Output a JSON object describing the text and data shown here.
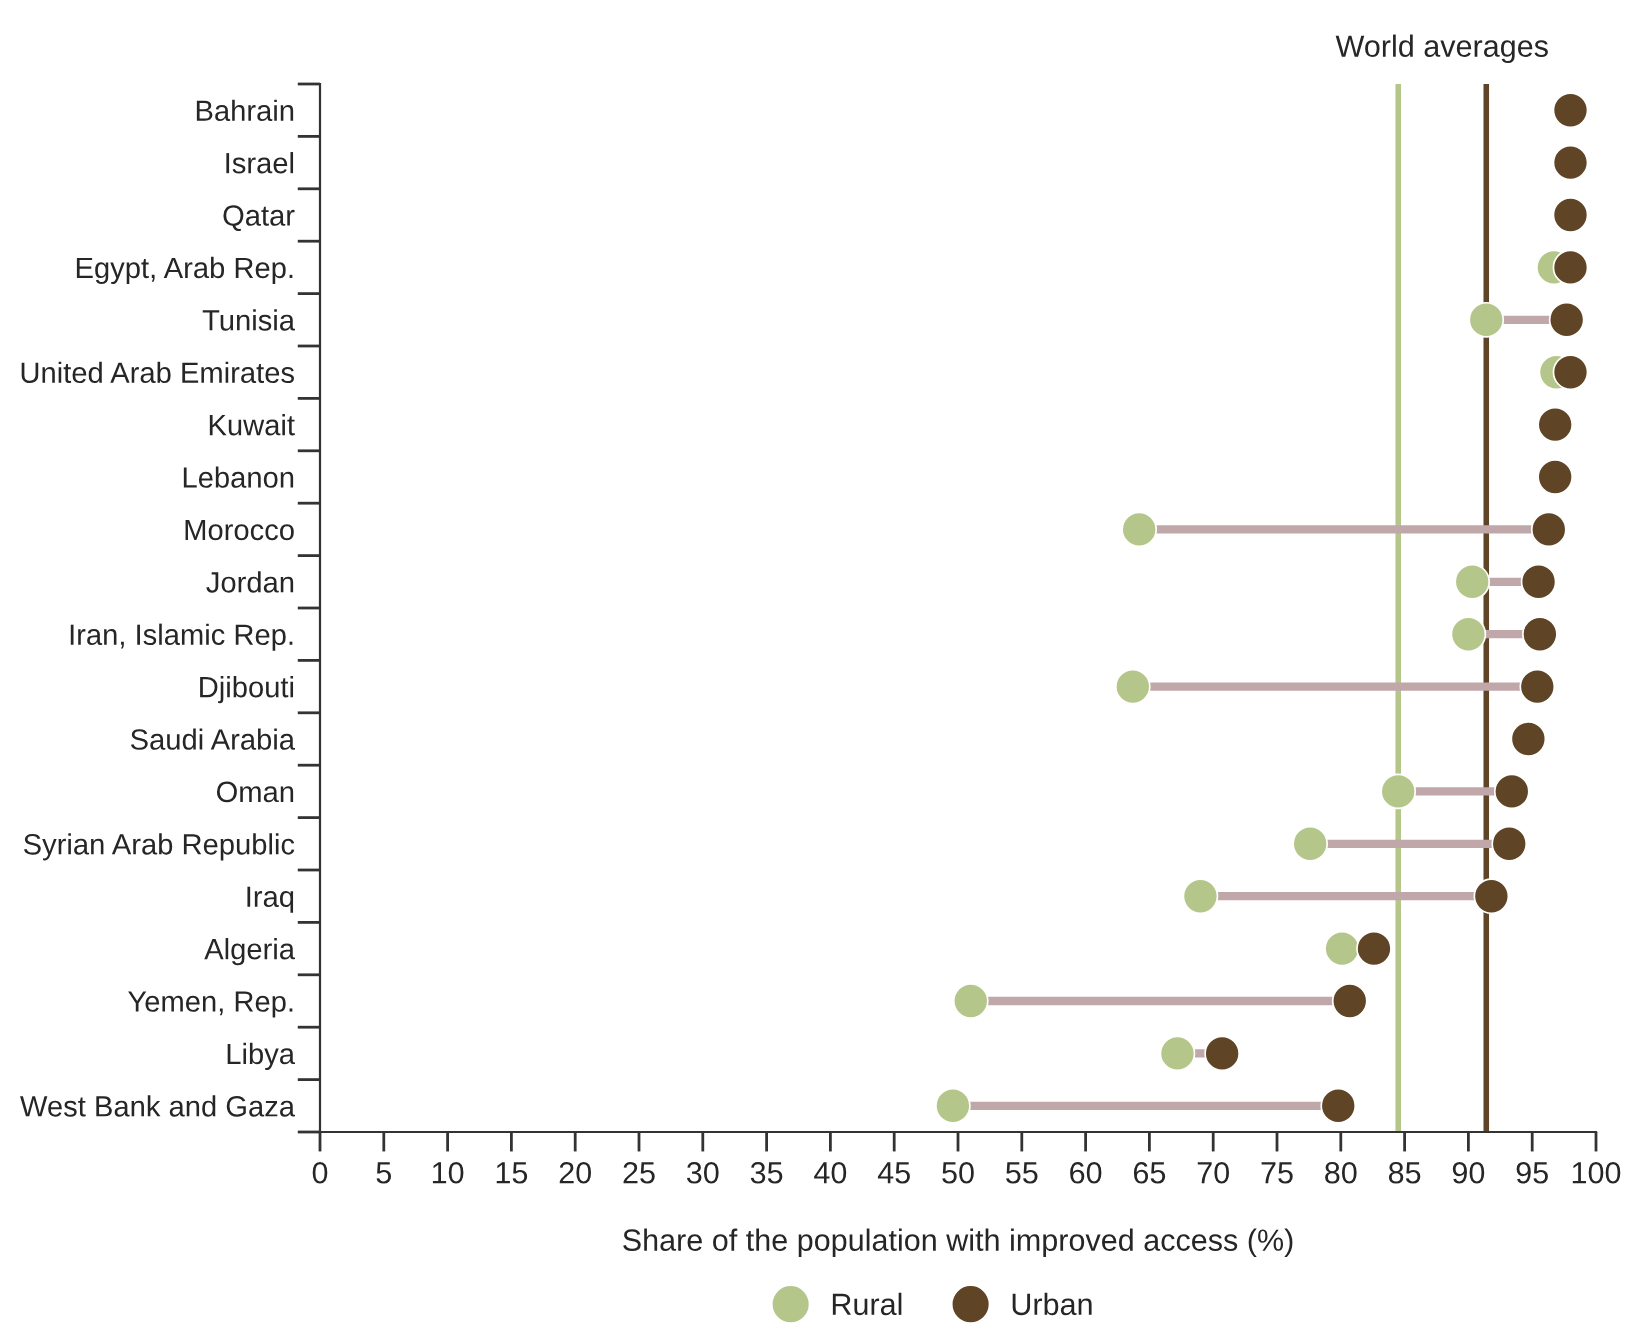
{
  "chart_data": {
    "type": "lollipop",
    "orientation": "horizontal",
    "categories": [
      "Bahrain",
      "Israel",
      "Qatar",
      "Egypt, Arab Rep.",
      "Tunisia",
      "United Arab Emirates",
      "Kuwait",
      "Lebanon",
      "Morocco",
      "Jordan",
      "Iran, Islamic Rep.",
      "Djibouti",
      "Saudi Arabia",
      "Oman",
      "Syrian Arab Republic",
      "Iraq",
      "Algeria",
      "Yemen, Rep.",
      "Libya",
      "West Bank and Gaza"
    ],
    "series": [
      {
        "name": "Rural",
        "color": "#b5c68a",
        "values": [
          null,
          null,
          null,
          96.7,
          91.4,
          96.9,
          null,
          null,
          64.2,
          90.3,
          90.0,
          63.7,
          null,
          84.5,
          77.6,
          69.0,
          80.1,
          51.0,
          67.2,
          49.6
        ]
      },
      {
        "name": "Urban",
        "color": "#5f4425",
        "values": [
          98.0,
          98.0,
          98.0,
          98.0,
          97.7,
          98.0,
          96.8,
          96.8,
          96.3,
          95.5,
          95.6,
          95.4,
          94.7,
          93.4,
          93.2,
          91.8,
          82.6,
          80.7,
          70.7,
          79.8
        ]
      }
    ],
    "xlim": [
      0,
      100
    ],
    "xticks": [
      0,
      5,
      10,
      15,
      20,
      25,
      30,
      35,
      40,
      45,
      50,
      55,
      60,
      65,
      70,
      75,
      80,
      85,
      90,
      95,
      100
    ],
    "xlabel": "Share of the population with improved access (%)",
    "ref_lines": [
      {
        "axis": "x",
        "value": 84.5,
        "color": "#b5c68a"
      },
      {
        "axis": "x",
        "value": 91.4,
        "color": "#5f4425"
      }
    ],
    "annotations": [
      "World averages"
    ],
    "legend": "bottom",
    "grid": false,
    "marker": "circle"
  }
}
